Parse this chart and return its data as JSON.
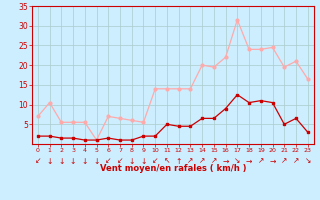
{
  "hours": [
    0,
    1,
    2,
    3,
    4,
    5,
    6,
    7,
    8,
    9,
    10,
    11,
    12,
    13,
    14,
    15,
    16,
    17,
    18,
    19,
    20,
    21,
    22,
    23
  ],
  "wind_avg": [
    2,
    2,
    1.5,
    1.5,
    1,
    1,
    1.5,
    1,
    1,
    2,
    2,
    5,
    4.5,
    4.5,
    6.5,
    6.5,
    9,
    12.5,
    10.5,
    11,
    10.5,
    5,
    6.5,
    3
  ],
  "wind_gust": [
    7,
    10.5,
    5.5,
    5.5,
    5.5,
    1,
    7,
    6.5,
    6,
    5.5,
    14,
    14,
    14,
    14,
    20,
    19.5,
    22,
    31.5,
    24,
    24,
    24.5,
    19.5,
    21,
    16.5
  ],
  "color_avg": "#cc0000",
  "color_gust": "#ffaaaa",
  "bg_color": "#cceeff",
  "grid_color": "#aacccc",
  "xlabel": "Vent moyen/en rafales ( km/h )",
  "xlabel_color": "#cc0000",
  "tick_color": "#cc0000",
  "spine_color": "#cc0000",
  "ylim": [
    0,
    35
  ],
  "yticks": [
    5,
    10,
    15,
    20,
    25,
    30,
    35
  ],
  "arrows": [
    "↙",
    "↓",
    "↓",
    "↓",
    "↓",
    "↓",
    "↙",
    "↙",
    "↓",
    "↓",
    "↙",
    "↖",
    "↑",
    "↗",
    "↗",
    "↗",
    "→",
    "↘",
    "→",
    "↗",
    "→",
    "↗",
    "↗",
    "↘"
  ]
}
